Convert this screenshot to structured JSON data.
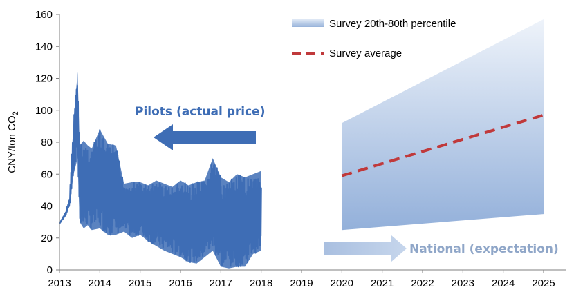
{
  "chart_data": {
    "type": "line",
    "title": "",
    "xlabel": "",
    "ylabel": "CNY/ton CO",
    "ylabel_subscript": "2",
    "xlim": [
      2013,
      2025
    ],
    "ylim": [
      0,
      160
    ],
    "x_ticks": [
      "2013",
      "2014",
      "2015",
      "2016",
      "2017",
      "2018",
      "2019",
      "2020",
      "2021",
      "2022",
      "2023",
      "2024",
      "2025"
    ],
    "y_ticks": [
      "0",
      "20",
      "40",
      "60",
      "80",
      "100",
      "120",
      "140",
      "160"
    ],
    "grid": false,
    "legend_position": "top-right",
    "legend": [
      {
        "label": "Survey 20th-80th percentile",
        "kind": "band"
      },
      {
        "label": "Survey average",
        "kind": "dashed-line"
      }
    ],
    "series": [
      {
        "name": "Pilots (actual price)",
        "kind": "volatile-band",
        "color": "#3e6db5",
        "x": [
          2013.0,
          2013.15,
          2013.25,
          2013.35,
          2013.45,
          2013.5,
          2013.6,
          2013.7,
          2013.8,
          2014.0,
          2014.2,
          2014.4,
          2014.6,
          2014.8,
          2015.0,
          2015.2,
          2015.4,
          2015.6,
          2015.8,
          2016.0,
          2016.2,
          2016.4,
          2016.6,
          2016.8,
          2017.0,
          2017.2,
          2017.4,
          2017.6,
          2017.8,
          2018.0
        ],
        "upper": [
          29,
          36,
          45,
          94,
          124,
          78,
          81,
          78,
          76,
          88,
          79,
          78,
          54,
          55,
          55,
          53,
          56,
          54,
          52,
          56,
          53,
          55,
          56,
          70,
          58,
          55,
          60,
          58,
          60,
          62
        ],
        "lower": [
          29,
          34,
          40,
          60,
          70,
          30,
          26,
          28,
          25,
          26,
          22,
          22,
          24,
          20,
          22,
          18,
          15,
          12,
          10,
          8,
          5,
          4,
          8,
          12,
          2,
          1,
          2,
          2,
          10,
          12
        ]
      },
      {
        "name": "Survey 20th-80th percentile",
        "kind": "band",
        "x": [
          2020,
          2025
        ],
        "lower": [
          25,
          35
        ],
        "upper": [
          92,
          157
        ]
      },
      {
        "name": "Survey average",
        "kind": "dashed-line",
        "x": [
          2020,
          2025
        ],
        "y": [
          59,
          97
        ]
      }
    ],
    "annotations": [
      {
        "text": "Pilots (actual price)",
        "color": "#3e6db5",
        "arrow": "left"
      },
      {
        "text": "National (expectation)",
        "color": "#8fa6c8",
        "arrow": "right"
      }
    ]
  },
  "colors": {
    "pilots": "#3e6db5",
    "band": "#9fb8dc",
    "average": "#c0393b",
    "national": "#b8cbe6"
  }
}
